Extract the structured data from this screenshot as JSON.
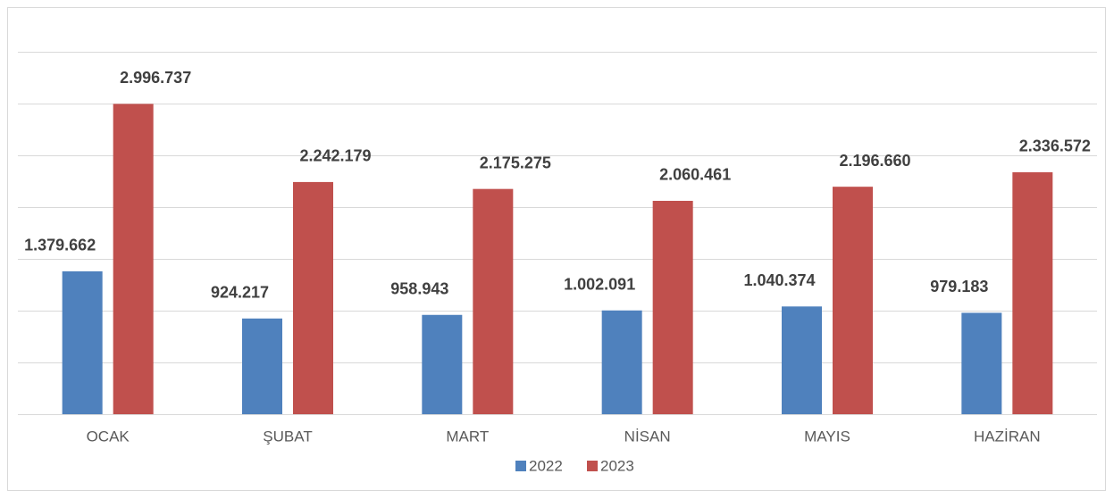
{
  "chart_data": {
    "type": "bar",
    "categories": [
      "OCAK",
      "ŞUBAT",
      "MART",
      "NİSAN",
      "MAYIS",
      "HAZİRAN"
    ],
    "series": [
      {
        "name": "2022",
        "color": "#4f81bd",
        "values": [
          1379662,
          924217,
          958943,
          1002091,
          1040374,
          979183
        ],
        "value_labels": [
          "1.379.662",
          "924.217",
          "958.943",
          "1.002.091",
          "1.040.374",
          "979.183"
        ]
      },
      {
        "name": "2023",
        "color": "#c0504d",
        "values": [
          2996737,
          2242179,
          2175275,
          2060461,
          2196660,
          2336572
        ],
        "value_labels": [
          "2.996.737",
          "2.242.179",
          "2.175.275",
          "2.060.461",
          "2.196.660",
          "2.336.572"
        ]
      }
    ],
    "ylim": [
      0,
      3500000
    ],
    "yticks": [
      0,
      500000,
      1000000,
      1500000,
      2000000,
      2500000,
      3000000,
      3500000
    ],
    "grid": true,
    "legend": "bottom"
  }
}
